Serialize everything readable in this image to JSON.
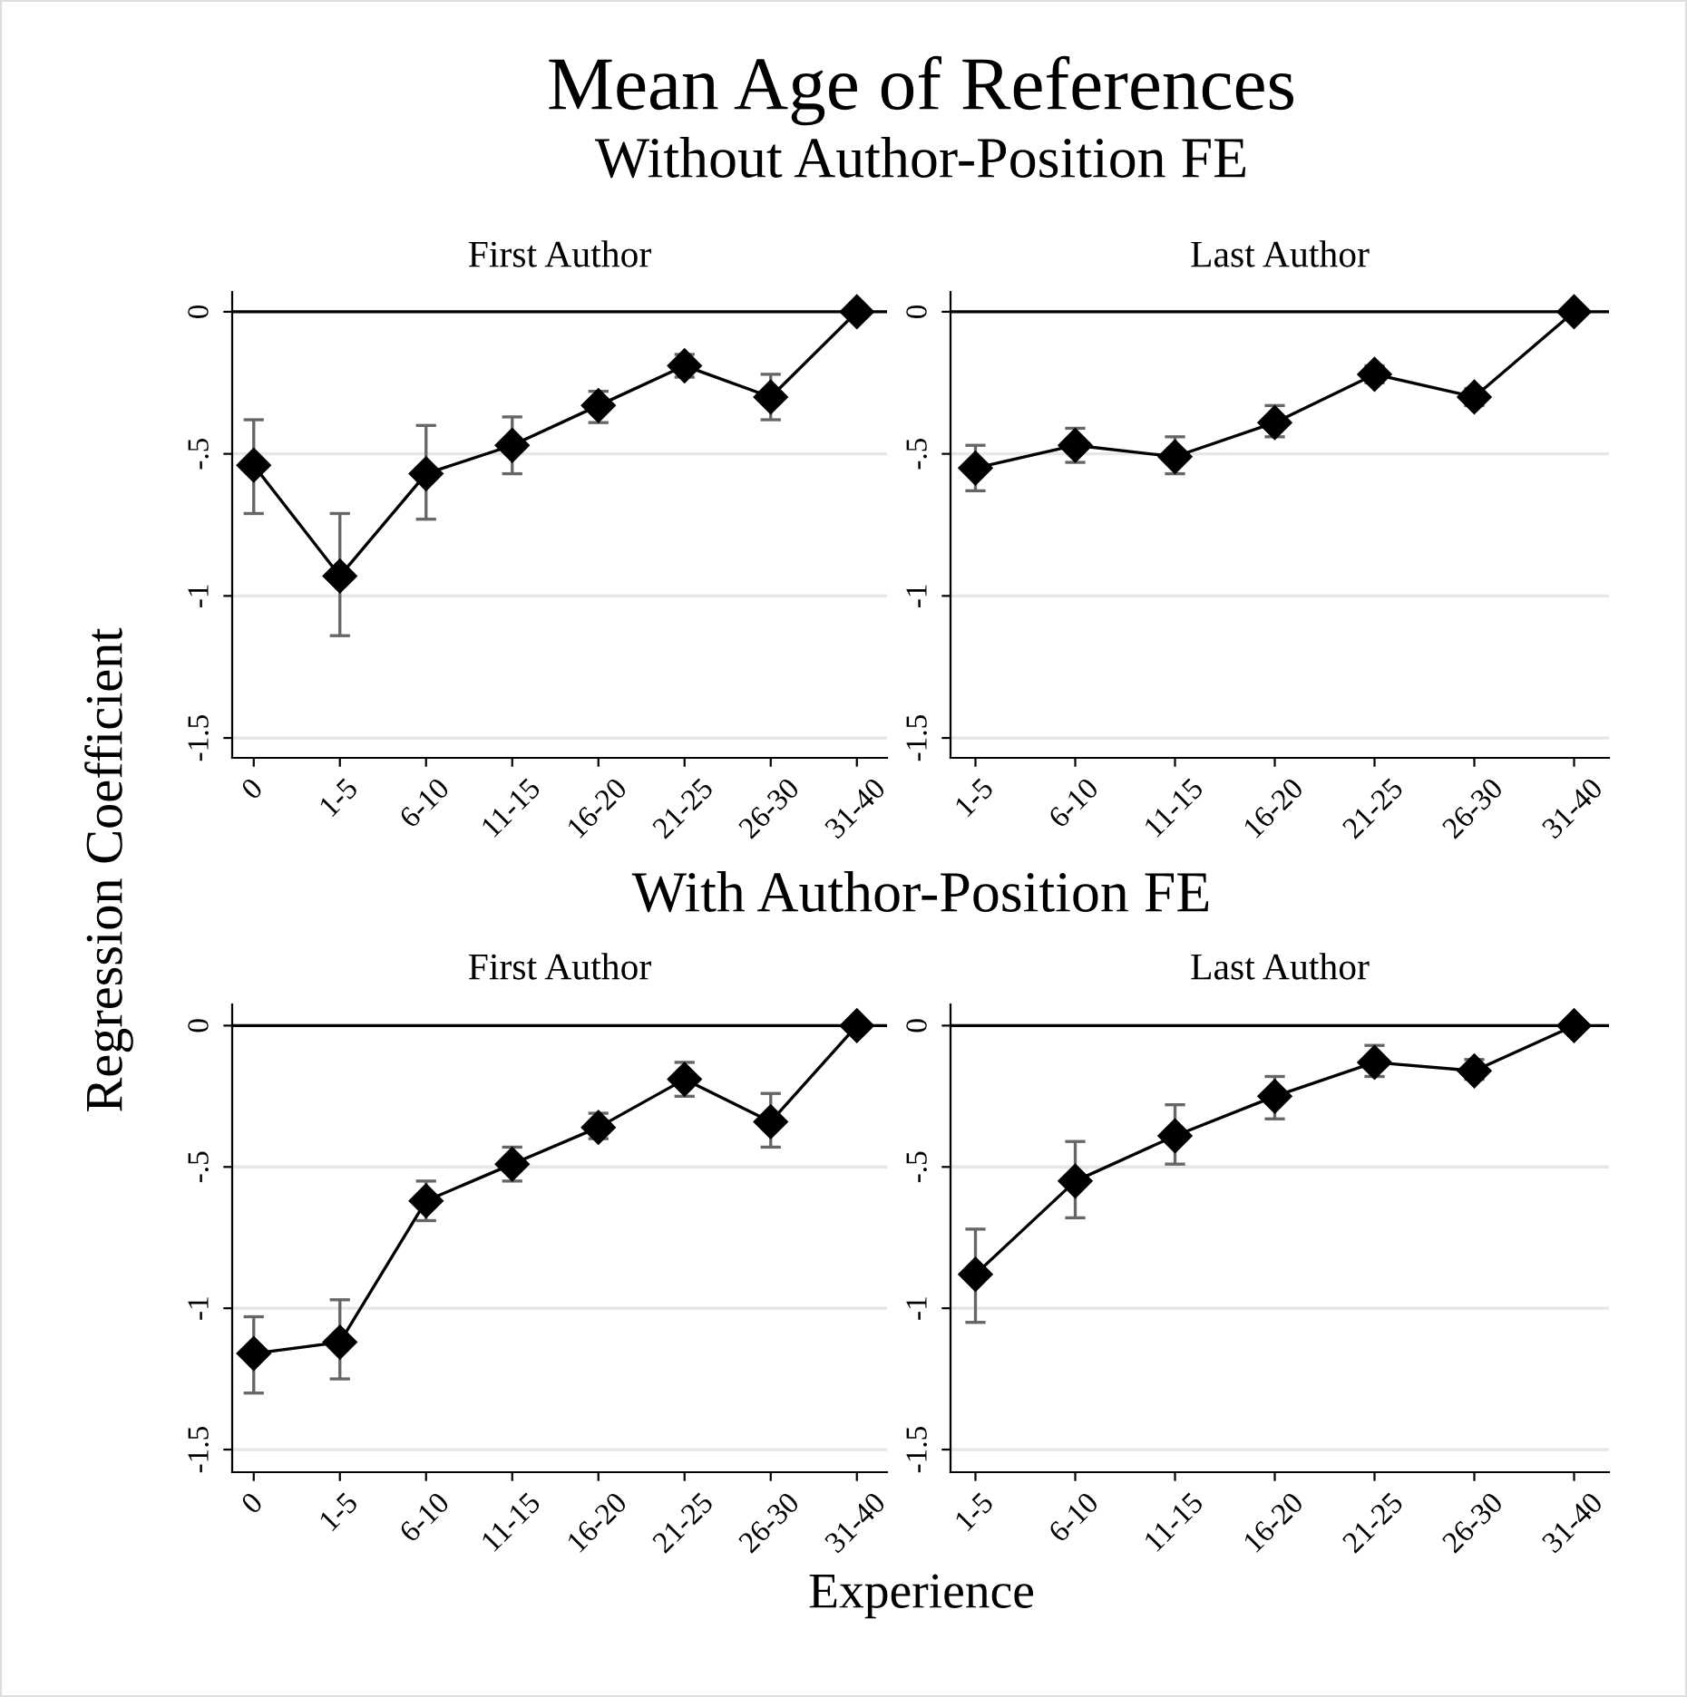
{
  "chart_data": [
    {
      "type": "line",
      "title": "First Author",
      "annotations": [
        "Mean Age of References",
        "Without Author-Position FE"
      ],
      "ylabel": "Regression Coefficient",
      "categories": [
        "0",
        "1-5",
        "6-10",
        "11-15",
        "16-20",
        "21-25",
        "26-30",
        "31-40"
      ],
      "series": [
        {
          "color": "#000000",
          "values": [
            -0.54,
            -0.93,
            -0.57,
            -0.47,
            -0.33,
            -0.19,
            -0.3,
            0
          ],
          "errors": [
            [
              -0.71,
              -0.38
            ],
            [
              -1.14,
              -0.71
            ],
            [
              -0.73,
              -0.4
            ],
            [
              -0.57,
              -0.37
            ],
            [
              -0.39,
              -0.28
            ],
            [
              -0.23,
              -0.15
            ],
            [
              -0.38,
              -0.22
            ],
            null
          ]
        }
      ],
      "ylim": [
        -1.57,
        0.07
      ],
      "yticks": [
        {
          "value": 0,
          "label": "0"
        },
        {
          "value": -0.5,
          "label": "-.5"
        },
        {
          "value": -1,
          "label": "-1"
        },
        {
          "value": -1.5,
          "label": "-1.5"
        }
      ],
      "grid": "y",
      "marker": "diamond",
      "ref_lines": [
        {
          "axis": "y",
          "value": 0,
          "color": "#000000"
        }
      ],
      "legend": false
    },
    {
      "type": "line",
      "title": "Last Author",
      "categories": [
        "1-5",
        "6-10",
        "11-15",
        "16-20",
        "21-25",
        "26-30",
        "31-40"
      ],
      "series": [
        {
          "color": "#000000",
          "values": [
            -0.55,
            -0.47,
            -0.51,
            -0.39,
            -0.22,
            -0.3,
            0
          ],
          "errors": [
            [
              -0.63,
              -0.47
            ],
            [
              -0.53,
              -0.41
            ],
            [
              -0.57,
              -0.44
            ],
            [
              -0.44,
              -0.33
            ],
            [
              -0.25,
              -0.19
            ],
            [
              -0.33,
              -0.27
            ],
            null
          ]
        }
      ],
      "ylim": [
        -1.57,
        0.07
      ],
      "yticks": [
        {
          "value": 0,
          "label": "0"
        },
        {
          "value": -0.5,
          "label": "-.5"
        },
        {
          "value": -1,
          "label": "-1"
        },
        {
          "value": -1.5,
          "label": "-1.5"
        }
      ],
      "grid": "y",
      "marker": "diamond",
      "ref_lines": [
        {
          "axis": "y",
          "value": 0,
          "color": "#000000"
        }
      ],
      "legend": false
    },
    {
      "type": "line",
      "title": "First Author",
      "annotations": [
        "With Author-Position FE"
      ],
      "xlabel": "Experience",
      "categories": [
        "0",
        "1-5",
        "6-10",
        "11-15",
        "16-20",
        "21-25",
        "26-30",
        "31-40"
      ],
      "series": [
        {
          "color": "#000000",
          "values": [
            -1.16,
            -1.12,
            -0.62,
            -0.49,
            -0.36,
            -0.19,
            -0.34,
            0
          ],
          "errors": [
            [
              -1.3,
              -1.03
            ],
            [
              -1.25,
              -0.97
            ],
            [
              -0.69,
              -0.55
            ],
            [
              -0.55,
              -0.43
            ],
            [
              -0.4,
              -0.31
            ],
            [
              -0.25,
              -0.13
            ],
            [
              -0.43,
              -0.24
            ],
            null
          ]
        }
      ],
      "ylim": [
        -1.58,
        0.075
      ],
      "yticks": [
        {
          "value": 0,
          "label": "0"
        },
        {
          "value": -0.5,
          "label": "-.5"
        },
        {
          "value": -1,
          "label": "-1"
        },
        {
          "value": -1.5,
          "label": "-1.5"
        }
      ],
      "grid": "y",
      "marker": "diamond",
      "ref_lines": [
        {
          "axis": "y",
          "value": 0,
          "color": "#000000"
        }
      ],
      "legend": false
    },
    {
      "type": "line",
      "title": "Last Author",
      "categories": [
        "1-5",
        "6-10",
        "11-15",
        "16-20",
        "21-25",
        "26-30",
        "31-40"
      ],
      "series": [
        {
          "color": "#000000",
          "values": [
            -0.88,
            -0.55,
            -0.39,
            -0.25,
            -0.13,
            -0.16,
            0
          ],
          "errors": [
            [
              -1.05,
              -0.72
            ],
            [
              -0.68,
              -0.41
            ],
            [
              -0.49,
              -0.28
            ],
            [
              -0.33,
              -0.18
            ],
            [
              -0.18,
              -0.07
            ],
            [
              -0.19,
              -0.12
            ],
            null
          ]
        }
      ],
      "ylim": [
        -1.58,
        0.075
      ],
      "yticks": [
        {
          "value": 0,
          "label": "0"
        },
        {
          "value": -0.5,
          "label": "-.5"
        },
        {
          "value": -1,
          "label": "-1"
        },
        {
          "value": -1.5,
          "label": "-1.5"
        }
      ],
      "grid": "y",
      "marker": "diamond",
      "ref_lines": [
        {
          "axis": "y",
          "value": 0,
          "color": "#000000"
        }
      ],
      "legend": false
    }
  ]
}
